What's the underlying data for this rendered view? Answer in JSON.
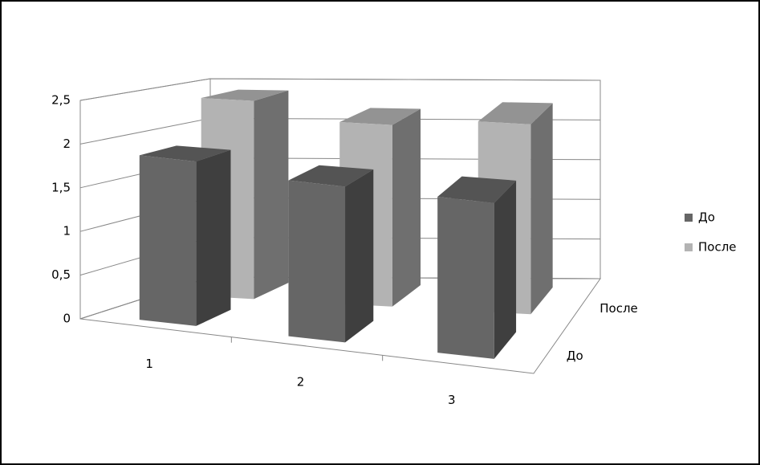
{
  "chart_data": {
    "type": "bar3d",
    "categories": [
      "1",
      "2",
      "3"
    ],
    "series": [
      {
        "name": "До",
        "color": "#666666",
        "values": [
          1.9,
          1.8,
          1.8
        ]
      },
      {
        "name": "После",
        "color": "#b3b3b3",
        "values": [
          2.4,
          2.2,
          2.3
        ]
      }
    ],
    "ylim": [
      0,
      2.5
    ],
    "yticks": [
      0,
      {
        "value": 0.5,
        "label": "0,5"
      },
      1,
      {
        "value": 1.5,
        "label": "1,5"
      },
      2,
      {
        "value": 2.5,
        "label": "2,5"
      }
    ],
    "grid": true,
    "legend": "right"
  }
}
